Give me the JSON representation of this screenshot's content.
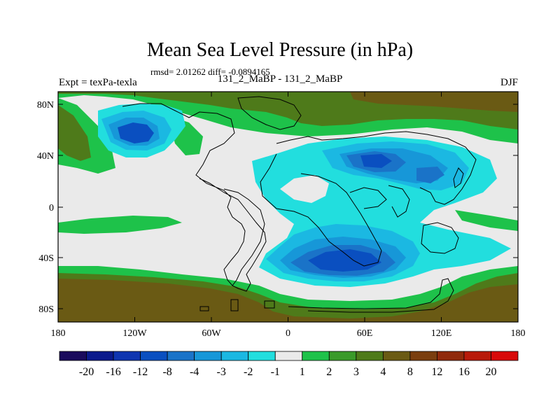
{
  "title": "Mean Sea Level Pressure (in hPa)",
  "stats": "rmsd= 2.01262 diff= -0.0894165",
  "experiment": "Expt = texPa-texla",
  "runs": "131_2_MaBP - 131_2_MaBP",
  "season": "DJF",
  "y_ticks": [
    "80N",
    "40N",
    "0",
    "40S",
    "80S"
  ],
  "x_ticks": [
    "180",
    "120W",
    "60W",
    "0",
    "60E",
    "120E",
    "180"
  ],
  "colorbar": {
    "colors": [
      "#1a0b5c",
      "#0b1a8c",
      "#0f35b0",
      "#0a4fc0",
      "#1a73c8",
      "#1797d8",
      "#1bb8e2",
      "#22dede",
      "#eaeaea",
      "#1ec24a",
      "#3a9a2a",
      "#4e7a1a",
      "#6a5a14",
      "#7a3e0f",
      "#902a0c",
      "#b81a0a",
      "#d80a0a"
    ],
    "labels": [
      "-20",
      "-16",
      "-12",
      "-8",
      "-4",
      "-3",
      "-2",
      "-1",
      "1",
      "2",
      "3",
      "4",
      "8",
      "12",
      "16",
      "20"
    ]
  },
  "palette": {
    "neutral": "#eaeaea",
    "cyan": "#22dede",
    "lightblue": "#1bb8e2",
    "blue": "#1797d8",
    "deepblue": "#1a73c8",
    "navy": "#0a4fc0",
    "green": "#1ec24a",
    "olive": "#4e7a1a",
    "brown": "#6a5a14",
    "coast": "#000000"
  }
}
